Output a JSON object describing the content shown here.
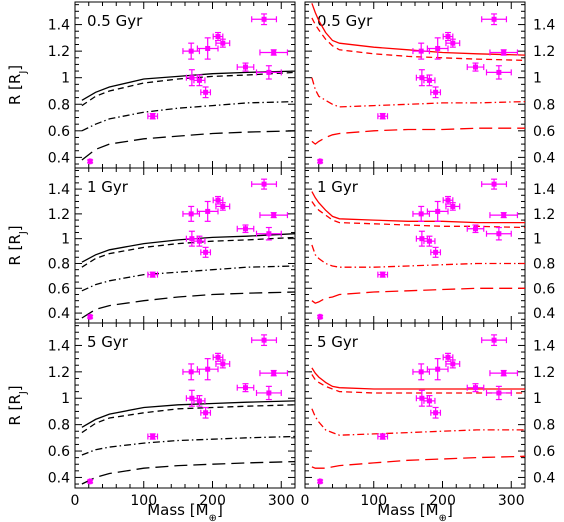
{
  "figure": {
    "xlabel": "Mass [M⊕]",
    "ylabel": "R [RJ]",
    "xlim": [
      0,
      320
    ],
    "ylim": [
      0.32,
      1.57
    ],
    "xticks": [
      0,
      100,
      200,
      300
    ],
    "yticks": [
      0.4,
      0.6,
      0.8,
      1,
      1.2,
      1.4
    ],
    "colors": {
      "black": "#000000",
      "red": "#ff0000",
      "magenta": "#ff00ff"
    }
  },
  "chart_data": [
    {
      "type": "line",
      "panel": "top-left",
      "title": "0.5 Gyr",
      "color": "#000000",
      "series": [
        {
          "style": "solid",
          "x": [
            10,
            30,
            50,
            100,
            150,
            200,
            250,
            320
          ],
          "y": [
            0.83,
            0.89,
            0.93,
            0.99,
            1.01,
            1.03,
            1.04,
            1.05
          ]
        },
        {
          "style": "dashed",
          "x": [
            10,
            30,
            50,
            100,
            150,
            200,
            250,
            320
          ],
          "y": [
            0.79,
            0.86,
            0.9,
            0.96,
            0.99,
            1.01,
            1.02,
            1.04
          ]
        },
        {
          "style": "dash-dot",
          "x": [
            10,
            30,
            50,
            100,
            150,
            200,
            250,
            320
          ],
          "y": [
            0.6,
            0.65,
            0.69,
            0.74,
            0.77,
            0.79,
            0.81,
            0.82
          ]
        },
        {
          "style": "long-dash",
          "x": [
            10,
            30,
            50,
            100,
            150,
            200,
            250,
            320
          ],
          "y": [
            0.38,
            0.46,
            0.5,
            0.54,
            0.56,
            0.58,
            0.59,
            0.6
          ]
        }
      ]
    },
    {
      "type": "line",
      "panel": "top-right",
      "title": "0.5 Gyr",
      "color": "#ff0000",
      "series": [
        {
          "style": "solid",
          "x": [
            10,
            15,
            20,
            30,
            40,
            50,
            100,
            150,
            200,
            250,
            320
          ],
          "y": [
            1.56,
            1.49,
            1.43,
            1.34,
            1.28,
            1.26,
            1.23,
            1.21,
            1.19,
            1.18,
            1.17
          ]
        },
        {
          "style": "dashed",
          "x": [
            10,
            15,
            20,
            30,
            40,
            50,
            100,
            150,
            200,
            250,
            320
          ],
          "y": [
            1.45,
            1.4,
            1.36,
            1.29,
            1.24,
            1.21,
            1.18,
            1.16,
            1.15,
            1.14,
            1.13
          ]
        },
        {
          "style": "dash-dot",
          "x": [
            10,
            15,
            20,
            30,
            40,
            50,
            100,
            150,
            200,
            250,
            320
          ],
          "y": [
            1.0,
            0.91,
            0.86,
            0.83,
            0.8,
            0.78,
            0.79,
            0.8,
            0.81,
            0.81,
            0.82
          ]
        },
        {
          "style": "long-dash",
          "x": [
            10,
            15,
            20,
            30,
            40,
            50,
            100,
            150,
            200,
            250,
            320
          ],
          "y": [
            0.52,
            0.5,
            0.52,
            0.55,
            0.57,
            0.58,
            0.6,
            0.61,
            0.61,
            0.62,
            0.62
          ]
        }
      ]
    },
    {
      "type": "line",
      "panel": "middle-left",
      "title": "1 Gyr",
      "color": "#000000",
      "series": [
        {
          "style": "solid",
          "x": [
            10,
            30,
            50,
            100,
            150,
            200,
            250,
            320
          ],
          "y": [
            0.81,
            0.87,
            0.91,
            0.96,
            0.99,
            1.01,
            1.02,
            1.04
          ]
        },
        {
          "style": "dashed",
          "x": [
            10,
            30,
            50,
            100,
            150,
            200,
            250,
            320
          ],
          "y": [
            0.77,
            0.84,
            0.88,
            0.93,
            0.96,
            0.98,
            0.99,
            1.01
          ]
        },
        {
          "style": "dash-dot",
          "x": [
            10,
            30,
            50,
            100,
            150,
            200,
            250,
            320
          ],
          "y": [
            0.58,
            0.63,
            0.66,
            0.71,
            0.73,
            0.75,
            0.77,
            0.78
          ]
        },
        {
          "style": "long-dash",
          "x": [
            10,
            30,
            50,
            100,
            150,
            200,
            250,
            320
          ],
          "y": [
            0.36,
            0.43,
            0.46,
            0.5,
            0.53,
            0.55,
            0.56,
            0.57
          ]
        }
      ]
    },
    {
      "type": "line",
      "panel": "middle-right",
      "title": "1 Gyr",
      "color": "#ff0000",
      "series": [
        {
          "style": "solid",
          "x": [
            10,
            15,
            20,
            30,
            40,
            50,
            100,
            150,
            200,
            250,
            320
          ],
          "y": [
            1.38,
            1.33,
            1.29,
            1.23,
            1.18,
            1.16,
            1.15,
            1.14,
            1.14,
            1.13,
            1.13
          ]
        },
        {
          "style": "dashed",
          "x": [
            10,
            15,
            20,
            30,
            40,
            50,
            100,
            150,
            200,
            250,
            320
          ],
          "y": [
            1.3,
            1.26,
            1.23,
            1.19,
            1.15,
            1.13,
            1.12,
            1.11,
            1.1,
            1.1,
            1.09
          ]
        },
        {
          "style": "dash-dot",
          "x": [
            10,
            15,
            20,
            30,
            40,
            50,
            100,
            150,
            200,
            250,
            320
          ],
          "y": [
            0.95,
            0.87,
            0.84,
            0.8,
            0.78,
            0.77,
            0.77,
            0.78,
            0.79,
            0.8,
            0.8
          ]
        },
        {
          "style": "long-dash",
          "x": [
            10,
            15,
            20,
            30,
            40,
            50,
            100,
            150,
            200,
            250,
            320
          ],
          "y": [
            0.5,
            0.48,
            0.49,
            0.52,
            0.53,
            0.55,
            0.57,
            0.58,
            0.59,
            0.6,
            0.6
          ]
        }
      ]
    },
    {
      "type": "line",
      "panel": "bottom-left",
      "title": "5 Gyr",
      "color": "#000000",
      "series": [
        {
          "style": "solid",
          "x": [
            10,
            30,
            50,
            100,
            150,
            200,
            250,
            320
          ],
          "y": [
            0.78,
            0.84,
            0.88,
            0.93,
            0.95,
            0.96,
            0.97,
            0.98
          ]
        },
        {
          "style": "dashed",
          "x": [
            10,
            30,
            50,
            100,
            150,
            200,
            250,
            320
          ],
          "y": [
            0.74,
            0.81,
            0.85,
            0.89,
            0.92,
            0.93,
            0.94,
            0.95
          ]
        },
        {
          "style": "dash-dot",
          "x": [
            10,
            30,
            50,
            100,
            150,
            200,
            250,
            320
          ],
          "y": [
            0.57,
            0.61,
            0.63,
            0.66,
            0.68,
            0.69,
            0.7,
            0.71
          ]
        },
        {
          "style": "long-dash",
          "x": [
            10,
            30,
            50,
            100,
            150,
            200,
            250,
            320
          ],
          "y": [
            0.35,
            0.4,
            0.43,
            0.47,
            0.49,
            0.5,
            0.51,
            0.52
          ]
        }
      ]
    },
    {
      "type": "line",
      "panel": "bottom-right",
      "title": "5 Gyr",
      "color": "#ff0000",
      "series": [
        {
          "style": "solid",
          "x": [
            10,
            15,
            20,
            30,
            40,
            50,
            100,
            150,
            200,
            250,
            320
          ],
          "y": [
            1.23,
            1.19,
            1.16,
            1.12,
            1.09,
            1.08,
            1.07,
            1.07,
            1.07,
            1.07,
            1.07
          ]
        },
        {
          "style": "dashed",
          "x": [
            10,
            15,
            20,
            30,
            40,
            50,
            100,
            150,
            200,
            250,
            320
          ],
          "y": [
            1.18,
            1.14,
            1.12,
            1.09,
            1.07,
            1.05,
            1.04,
            1.04,
            1.04,
            1.04,
            1.04
          ]
        },
        {
          "style": "dash-dot",
          "x": [
            10,
            15,
            20,
            30,
            40,
            50,
            100,
            150,
            200,
            250,
            320
          ],
          "y": [
            0.92,
            0.86,
            0.82,
            0.76,
            0.74,
            0.72,
            0.73,
            0.74,
            0.75,
            0.76,
            0.76
          ]
        },
        {
          "style": "long-dash",
          "x": [
            10,
            15,
            20,
            30,
            40,
            50,
            100,
            150,
            200,
            250,
            320
          ],
          "y": [
            0.48,
            0.47,
            0.47,
            0.47,
            0.48,
            0.49,
            0.51,
            0.53,
            0.54,
            0.55,
            0.56
          ]
        }
      ]
    }
  ],
  "observations": {
    "type": "scatter",
    "color": "#ff00ff",
    "points": [
      {
        "x": 22,
        "y": 0.37,
        "xerr": 1,
        "yerr": 0.01
      },
      {
        "x": 113,
        "y": 0.71,
        "xerr": 7,
        "yerr": 0.02
      },
      {
        "x": 169,
        "y": 1.2,
        "xerr": 12,
        "yerr": 0.06
      },
      {
        "x": 170,
        "y": 1.0,
        "xerr": 8,
        "yerr": 0.06
      },
      {
        "x": 181,
        "y": 0.98,
        "xerr": 8,
        "yerr": 0.04
      },
      {
        "x": 190,
        "y": 0.89,
        "xerr": 7,
        "yerr": 0.04
      },
      {
        "x": 193,
        "y": 1.22,
        "xerr": 15,
        "yerr": 0.08
      },
      {
        "x": 208,
        "y": 1.31,
        "xerr": 7,
        "yerr": 0.03
      },
      {
        "x": 215,
        "y": 1.26,
        "xerr": 10,
        "yerr": 0.03
      },
      {
        "x": 248,
        "y": 1.08,
        "xerr": 12,
        "yerr": 0.03
      },
      {
        "x": 275,
        "y": 1.44,
        "xerr": 18,
        "yerr": 0.04
      },
      {
        "x": 282,
        "y": 1.04,
        "xerr": 18,
        "yerr": 0.05
      },
      {
        "x": 289,
        "y": 1.19,
        "xerr": 20,
        "yerr": 0.02
      }
    ]
  }
}
